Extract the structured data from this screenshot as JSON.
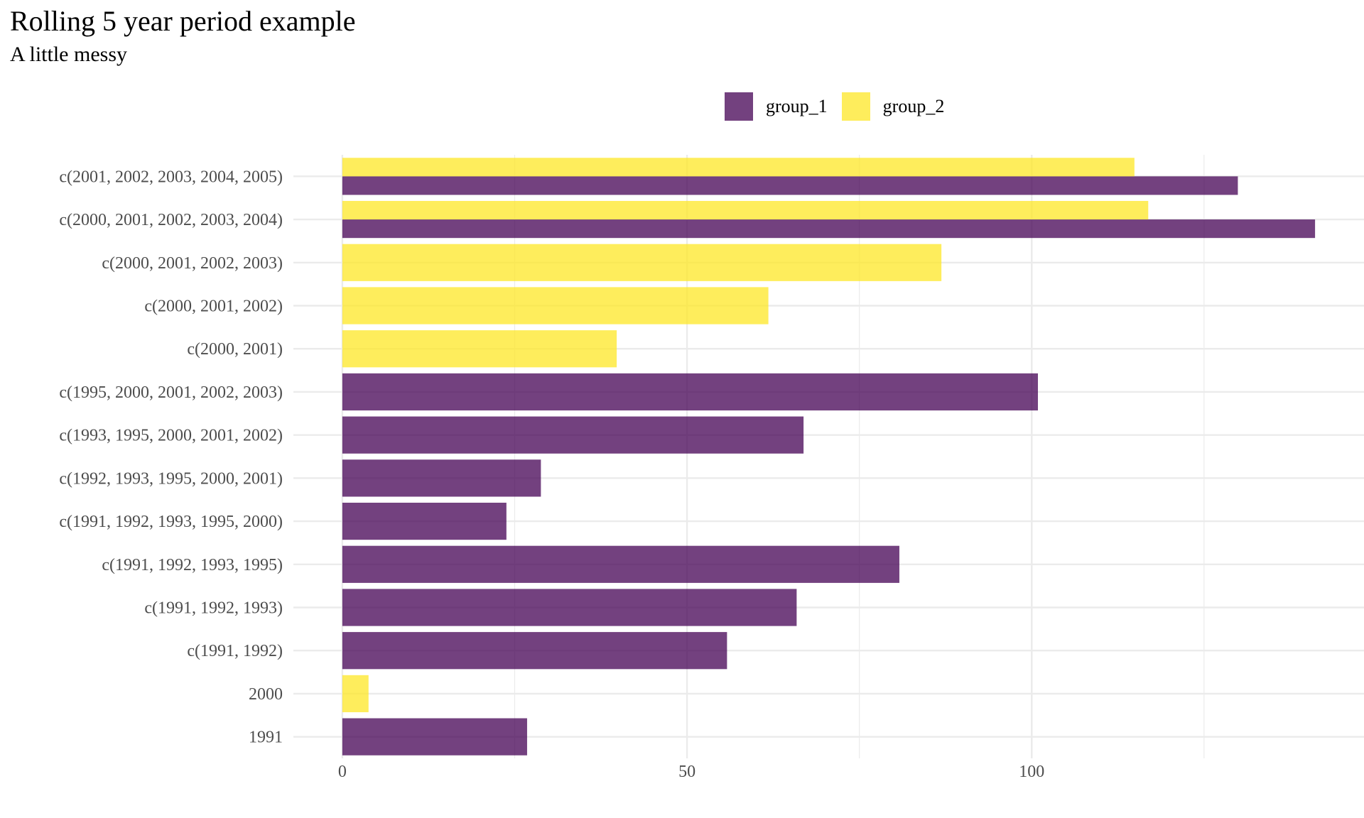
{
  "title": "Rolling 5 year period example",
  "subtitle": "A little messy",
  "colors": {
    "group_1": "#440154",
    "group_2": "#FDE725",
    "grid": "#EBEBEB",
    "tick_text": "#4D4D4D"
  },
  "legend": {
    "placement": "top",
    "items": [
      {
        "label": "group_1",
        "color": "#440154"
      },
      {
        "label": "group_2",
        "color": "#FDE725"
      }
    ]
  },
  "chart_data": {
    "type": "bar",
    "orientation": "horizontal",
    "position": "dodge",
    "categories": [
      "1991",
      "2000",
      "c(1991, 1992)",
      "c(1991, 1992, 1993)",
      "c(1991, 1992, 1993, 1995)",
      "c(1991, 1992, 1993, 1995, 2000)",
      "c(1992, 1993, 1995, 2000, 2001)",
      "c(1993, 1995, 2000, 2001, 2002)",
      "c(1995, 2000, 2001, 2002, 2003)",
      "c(2000, 2001)",
      "c(2000, 2001, 2002)",
      "c(2000, 2001, 2002, 2003)",
      "c(2000, 2001, 2002, 2003, 2004)",
      "c(2001, 2002, 2003, 2004, 2005)"
    ],
    "series": [
      {
        "name": "group_1",
        "values": [
          26.8,
          null,
          55.8,
          65.9,
          80.8,
          23.8,
          28.8,
          66.9,
          100.9,
          null,
          null,
          null,
          141.1,
          129.9
        ]
      },
      {
        "name": "group_2",
        "values": [
          null,
          3.8,
          null,
          null,
          null,
          null,
          null,
          null,
          null,
          39.8,
          61.8,
          86.9,
          116.9,
          114.9
        ]
      }
    ],
    "xlim": [
      -7.1,
      148.2
    ],
    "x_ticks": [
      0,
      50,
      100
    ],
    "x_tick_labels": [
      "0",
      "50",
      "100"
    ],
    "x_minor_ticks": [
      25,
      75,
      125
    ],
    "title": "Rolling 5 year period example",
    "subtitle": "A little messy",
    "xlabel": "",
    "ylabel": "",
    "grid": true,
    "bar_opacity": 0.75
  }
}
